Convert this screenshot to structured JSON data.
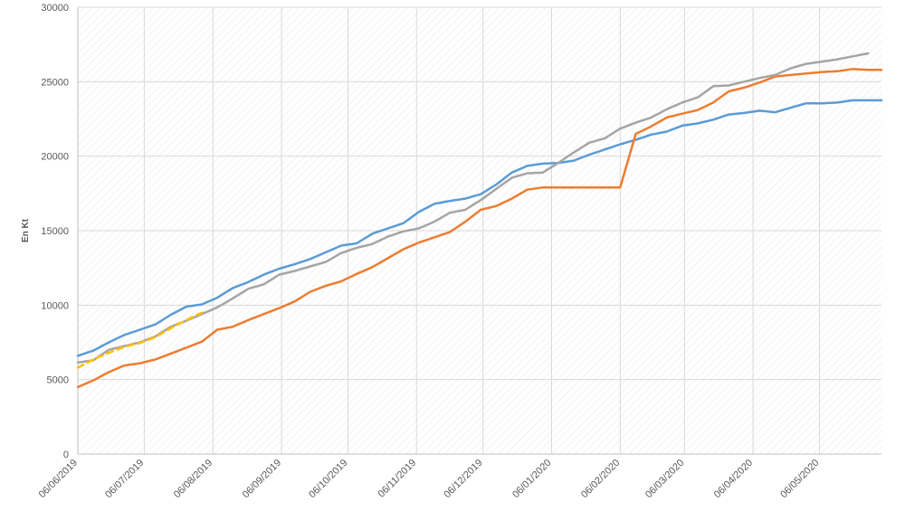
{
  "chart_data": {
    "type": "line",
    "title": "",
    "xlabel": "",
    "ylabel": "En Kt",
    "ylim": [
      0,
      30000
    ],
    "yticks": [
      0,
      5000,
      10000,
      15000,
      20000,
      25000,
      30000
    ],
    "xlim": [
      "06/06/2019",
      "03/06/2020"
    ],
    "xticks": [
      "06/06/2019",
      "06/07/2019",
      "06/08/2019",
      "06/09/2019",
      "06/10/2019",
      "06/11/2019",
      "06/12/2019",
      "06/01/2020",
      "06/02/2020",
      "06/03/2020",
      "06/04/2020",
      "06/05/2020"
    ],
    "grid": true,
    "legend": "none",
    "colors": {
      "blue": "#5b9bd5",
      "orange": "#ed7d31",
      "gray": "#a5a5a5",
      "yellow": "#ffc000",
      "grid": "#d9d9d9",
      "axis": "#bfbfbf",
      "text": "#595959"
    },
    "series": [
      {
        "color": "#5b9bd5",
        "style": "solid",
        "points": [
          [
            "06/06/2019",
            6600
          ],
          [
            "13/06/2019",
            6950
          ],
          [
            "20/06/2019",
            7500
          ],
          [
            "27/06/2019",
            8000
          ],
          [
            "04/07/2019",
            8350
          ],
          [
            "11/07/2019",
            8700
          ],
          [
            "18/07/2019",
            9350
          ],
          [
            "25/07/2019",
            9900
          ],
          [
            "01/08/2019",
            10050
          ],
          [
            "08/08/2019",
            10500
          ],
          [
            "15/08/2019",
            11150
          ],
          [
            "22/08/2019",
            11550
          ],
          [
            "29/08/2019",
            12050
          ],
          [
            "05/09/2019",
            12450
          ],
          [
            "12/09/2019",
            12750
          ],
          [
            "19/09/2019",
            13100
          ],
          [
            "26/09/2019",
            13550
          ],
          [
            "03/10/2019",
            14000
          ],
          [
            "10/10/2019",
            14150
          ],
          [
            "17/10/2019",
            14800
          ],
          [
            "24/10/2019",
            15150
          ],
          [
            "31/10/2019",
            15500
          ],
          [
            "07/11/2019",
            16250
          ],
          [
            "14/11/2019",
            16800
          ],
          [
            "21/11/2019",
            17000
          ],
          [
            "28/11/2019",
            17150
          ],
          [
            "05/12/2019",
            17450
          ],
          [
            "12/12/2019",
            18100
          ],
          [
            "19/12/2019",
            18900
          ],
          [
            "26/12/2019",
            19350
          ],
          [
            "02/01/2020",
            19500
          ],
          [
            "09/01/2020",
            19550
          ],
          [
            "16/01/2020",
            19700
          ],
          [
            "23/01/2020",
            20100
          ],
          [
            "30/01/2020",
            20450
          ],
          [
            "06/02/2020",
            20800
          ],
          [
            "13/02/2020",
            21100
          ],
          [
            "20/02/2020",
            21450
          ],
          [
            "27/02/2020",
            21650
          ],
          [
            "05/03/2020",
            22050
          ],
          [
            "12/03/2020",
            22200
          ],
          [
            "19/03/2020",
            22450
          ],
          [
            "26/03/2020",
            22800
          ],
          [
            "02/04/2020",
            22900
          ],
          [
            "09/04/2020",
            23050
          ],
          [
            "16/04/2020",
            22950
          ],
          [
            "23/04/2020",
            23250
          ],
          [
            "30/04/2020",
            23550
          ],
          [
            "07/05/2020",
            23550
          ],
          [
            "14/05/2020",
            23600
          ],
          [
            "21/05/2020",
            23750
          ],
          [
            "28/05/2020",
            23750
          ],
          [
            "03/06/2020",
            23750
          ]
        ]
      },
      {
        "color": "#ed7d31",
        "style": "solid",
        "points": [
          [
            "06/06/2019",
            4500
          ],
          [
            "13/06/2019",
            4950
          ],
          [
            "20/06/2019",
            5500
          ],
          [
            "27/06/2019",
            5950
          ],
          [
            "04/07/2019",
            6100
          ],
          [
            "11/07/2019",
            6350
          ],
          [
            "18/07/2019",
            6750
          ],
          [
            "25/07/2019",
            7150
          ],
          [
            "01/08/2019",
            7550
          ],
          [
            "08/08/2019",
            8350
          ],
          [
            "15/08/2019",
            8550
          ],
          [
            "22/08/2019",
            9000
          ],
          [
            "29/08/2019",
            9400
          ],
          [
            "05/09/2019",
            9800
          ],
          [
            "12/09/2019",
            10250
          ],
          [
            "19/09/2019",
            10900
          ],
          [
            "26/09/2019",
            11300
          ],
          [
            "03/10/2019",
            11600
          ],
          [
            "10/10/2019",
            12100
          ],
          [
            "17/10/2019",
            12550
          ],
          [
            "24/10/2019",
            13150
          ],
          [
            "31/10/2019",
            13750
          ],
          [
            "07/11/2019",
            14200
          ],
          [
            "14/11/2019",
            14550
          ],
          [
            "21/11/2019",
            14900
          ],
          [
            "28/11/2019",
            15600
          ],
          [
            "05/12/2019",
            16400
          ],
          [
            "12/12/2019",
            16650
          ],
          [
            "19/12/2019",
            17150
          ],
          [
            "26/12/2019",
            17750
          ],
          [
            "02/01/2020",
            17900
          ],
          [
            "09/01/2020",
            17900
          ],
          [
            "16/01/2020",
            17900
          ],
          [
            "23/01/2020",
            17900
          ],
          [
            "30/01/2020",
            17900
          ],
          [
            "06/02/2020",
            17900
          ],
          [
            "13/02/2020",
            21500
          ],
          [
            "20/02/2020",
            22000
          ],
          [
            "27/02/2020",
            22600
          ],
          [
            "05/03/2020",
            22850
          ],
          [
            "12/03/2020",
            23100
          ],
          [
            "19/03/2020",
            23600
          ],
          [
            "26/03/2020",
            24350
          ],
          [
            "02/04/2020",
            24600
          ],
          [
            "09/04/2020",
            24950
          ],
          [
            "16/04/2020",
            25350
          ],
          [
            "23/04/2020",
            25450
          ],
          [
            "30/04/2020",
            25550
          ],
          [
            "07/05/2020",
            25650
          ],
          [
            "14/05/2020",
            25700
          ],
          [
            "21/05/2020",
            25850
          ],
          [
            "28/05/2020",
            25800
          ],
          [
            "03/06/2020",
            25800
          ]
        ]
      },
      {
        "color": "#a5a5a5",
        "style": "solid",
        "points": [
          [
            "06/06/2019",
            6150
          ],
          [
            "13/06/2019",
            6300
          ],
          [
            "20/06/2019",
            7000
          ],
          [
            "27/06/2019",
            7250
          ],
          [
            "04/07/2019",
            7500
          ],
          [
            "11/07/2019",
            7900
          ],
          [
            "18/07/2019",
            8550
          ],
          [
            "25/07/2019",
            8950
          ],
          [
            "01/08/2019",
            9400
          ],
          [
            "08/08/2019",
            9850
          ],
          [
            "15/08/2019",
            10450
          ],
          [
            "22/08/2019",
            11100
          ],
          [
            "29/08/2019",
            11400
          ],
          [
            "05/09/2019",
            12050
          ],
          [
            "12/09/2019",
            12300
          ],
          [
            "19/09/2019",
            12600
          ],
          [
            "26/09/2019",
            12900
          ],
          [
            "03/10/2019",
            13500
          ],
          [
            "10/10/2019",
            13850
          ],
          [
            "17/10/2019",
            14100
          ],
          [
            "24/10/2019",
            14600
          ],
          [
            "31/10/2019",
            14950
          ],
          [
            "07/11/2019",
            15150
          ],
          [
            "14/11/2019",
            15600
          ],
          [
            "21/11/2019",
            16200
          ],
          [
            "28/11/2019",
            16400
          ],
          [
            "05/12/2019",
            17050
          ],
          [
            "12/12/2019",
            17800
          ],
          [
            "19/12/2019",
            18550
          ],
          [
            "26/12/2019",
            18850
          ],
          [
            "02/01/2020",
            18900
          ],
          [
            "09/01/2020",
            19550
          ],
          [
            "16/01/2020",
            20250
          ],
          [
            "23/01/2020",
            20900
          ],
          [
            "30/01/2020",
            21200
          ],
          [
            "06/02/2020",
            21850
          ],
          [
            "13/02/2020",
            22250
          ],
          [
            "20/02/2020",
            22600
          ],
          [
            "27/02/2020",
            23150
          ],
          [
            "05/03/2020",
            23600
          ],
          [
            "12/03/2020",
            23950
          ],
          [
            "19/03/2020",
            24700
          ],
          [
            "26/03/2020",
            24750
          ],
          [
            "02/04/2020",
            25000
          ],
          [
            "09/04/2020",
            25250
          ],
          [
            "16/04/2020",
            25450
          ],
          [
            "23/04/2020",
            25900
          ],
          [
            "30/04/2020",
            26200
          ],
          [
            "07/05/2020",
            26350
          ],
          [
            "14/05/2020",
            26500
          ],
          [
            "21/05/2020",
            26700
          ],
          [
            "28/05/2020",
            26900
          ]
        ]
      },
      {
        "color": "#ffc000",
        "style": "dashed",
        "points": [
          [
            "06/06/2019",
            5800
          ],
          [
            "13/06/2019",
            6350
          ],
          [
            "20/06/2019",
            6800
          ],
          [
            "27/06/2019",
            7200
          ],
          [
            "04/07/2019",
            7450
          ],
          [
            "11/07/2019",
            7850
          ],
          [
            "18/07/2019",
            8450
          ],
          [
            "25/07/2019",
            9000
          ],
          [
            "01/08/2019",
            9500
          ]
        ]
      }
    ]
  }
}
